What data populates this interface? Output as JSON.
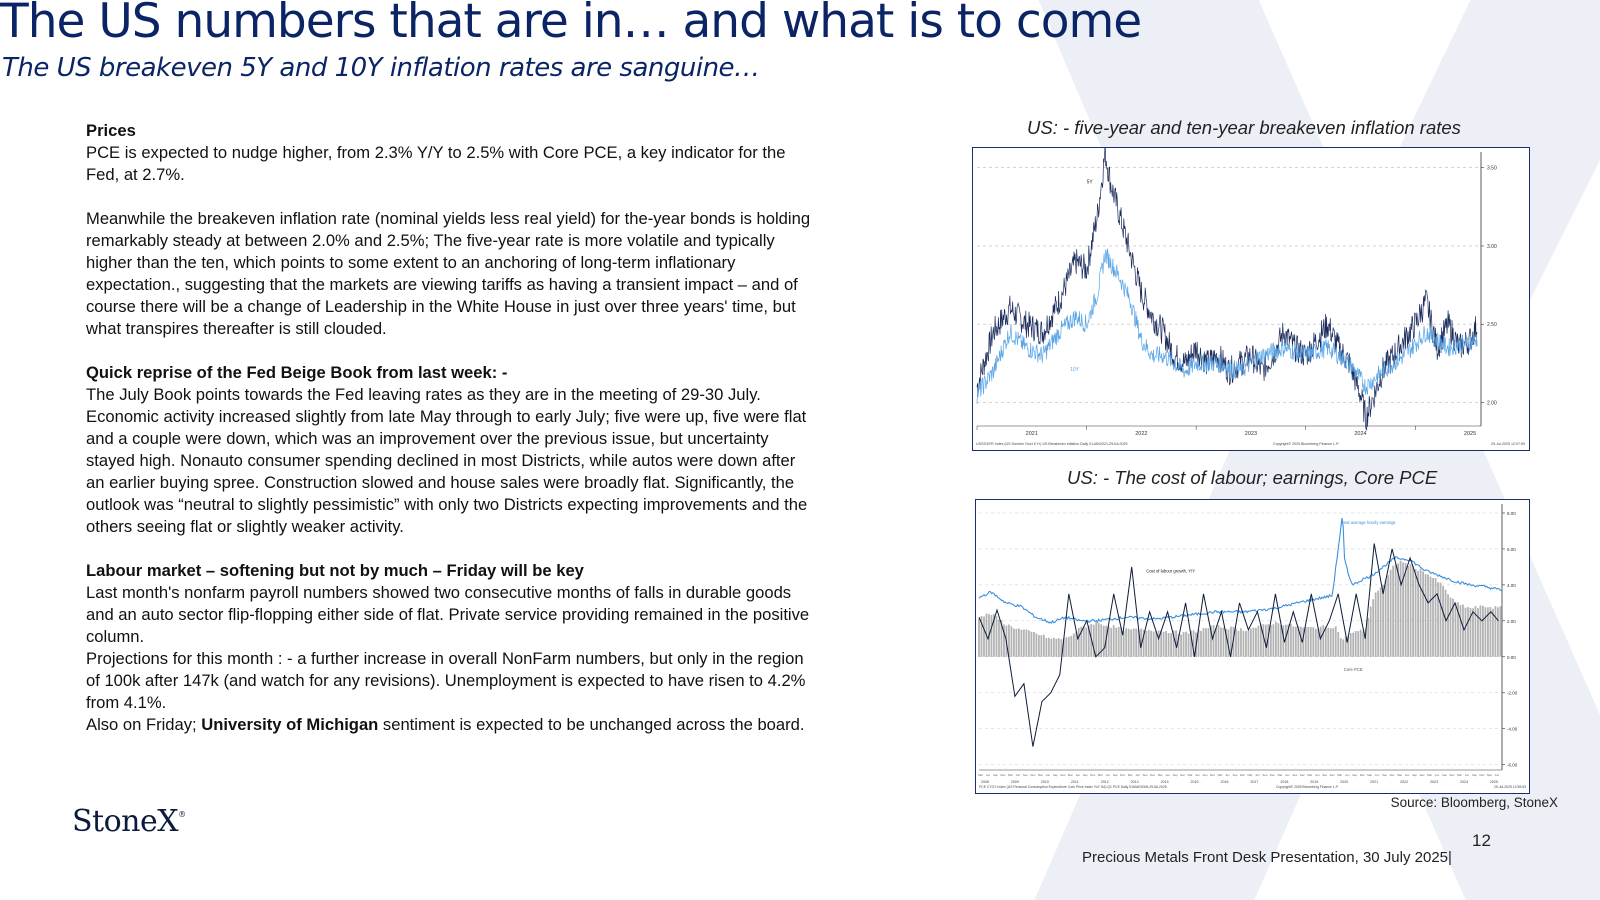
{
  "slide": {
    "title": "The US numbers that are in… and what is to come",
    "subtitle": "The US breakeven 5Y and 10Y inflation rates are sanguine…"
  },
  "body": {
    "prices_heading": "Prices",
    "prices_p1": "PCE is expected to nudge higher, from 2.3% Y/Y to 2.5% with Core PCE, a key indicator for the Fed, at 2.7%.",
    "prices_p2": "Meanwhile the breakeven inflation rate (nominal yields less real yield) for the-year bonds is holding remarkably steady at between 2.0% and 2.5%;   The five-year rate is more volatile and typically higher than the ten, which points to some extent to an anchoring of long-term inflationary expectation., suggesting that the markets are viewing tariffs as having a transient impact – and of course there will be a change of Leadership in the White House in just over three years' time, but what transpires thereafter is still clouded.",
    "beige_heading": "Quick reprise of the Fed Beige Book from last week: -",
    "beige_p1": "The July Book points towards the Fed leaving rates as they are in the meeting of 29-30 July. Economic activity increased slightly from late May through to early July; five were up, five were flat and a couple were down, which was an improvement over the previous issue, but uncertainty stayed high.  Nonauto consumer spending declined in most Districts, while autos were down after an earlier buying spree.  Construction slowed and house sales were broadly flat.  Significantly, the outlook was “neutral to slightly pessimistic” with only two Districts expecting improvements and the others seeing flat or slightly weaker activity.",
    "labour_heading": "Labour market – softening but not by much – Friday will be key",
    "labour_p1": "Last month's nonfarm payroll numbers showed two consecutive months of falls in durable goods and an auto sector flip-flopping either side of flat.  Private service providing remained in the positive column.",
    "labour_p2": "Projections for this month : - a further increase in overall NonFarm numbers, but only in the region of 100k after 147k (and watch for any revisions).  Unemployment is expected to have risen to 4.2% from 4.1%.",
    "labour_p3_prefix": "Also on Friday; ",
    "labour_p3_bold": "University of Michigan",
    "labour_p3_suffix": " sentiment is expected to be unchanged across the board."
  },
  "chart1": {
    "title": "US: -  five-year and ten-year breakeven inflation rates",
    "footer_left": "USGG5YR Index (US Generic Govt 5 Yr) US Breakeven Inflation  Daily 01JAN2021-29JUL2025",
    "footer_mid": "Copyright© 2025 Bloomberg Finance L.P.",
    "footer_right": "29-Jul-2025 12:07:59"
  },
  "chart2": {
    "title": "US: - The cost of labour; earnings,  Core PCE",
    "footer_left": "PCE CYOY Index (US Personal Consumption Expenditure Core Price Index YoY SA) Q1 PCE  Daily 01MAR2008-29JUL2025",
    "footer_mid": "Copyright© 2025 Bloomberg Finance L.P.",
    "footer_right": "29-Jul-2025 12:55:53"
  },
  "chart_data": [
    {
      "type": "line",
      "title": "US: -  five-year and ten-year breakeven inflation rates",
      "x_ticks": [
        "2021",
        "2022",
        "2023",
        "2024",
        "2025"
      ],
      "y_ticks": [
        "2.00",
        "2.50",
        "3.00",
        "3.50"
      ],
      "ylim": [
        1.85,
        3.6
      ],
      "annotations": [
        "5Y",
        "10Y"
      ],
      "series": [
        {
          "name": "5Y",
          "color": "#1a2a5c",
          "x": [
            2021.0,
            2021.15,
            2021.3,
            2021.45,
            2021.6,
            2021.75,
            2021.9,
            2022.0,
            2022.1,
            2022.17,
            2022.22,
            2022.3,
            2022.4,
            2022.5,
            2022.6,
            2022.7,
            2022.8,
            2022.9,
            2023.0,
            2023.1,
            2023.2,
            2023.3,
            2023.4,
            2023.5,
            2023.6,
            2023.7,
            2023.8,
            2023.9,
            2024.0,
            2024.1,
            2024.2,
            2024.3,
            2024.4,
            2024.5,
            2024.55,
            2024.6,
            2024.7,
            2024.8,
            2024.9,
            2025.0,
            2025.1,
            2025.2,
            2025.3,
            2025.4,
            2025.5,
            2025.57
          ],
          "values": [
            2.1,
            2.45,
            2.6,
            2.5,
            2.45,
            2.65,
            2.9,
            2.85,
            3.2,
            3.6,
            3.4,
            3.2,
            2.95,
            2.7,
            2.55,
            2.45,
            2.3,
            2.25,
            2.35,
            2.25,
            2.3,
            2.2,
            2.25,
            2.3,
            2.2,
            2.3,
            2.45,
            2.35,
            2.3,
            2.4,
            2.5,
            2.35,
            2.25,
            2.05,
            1.9,
            2.0,
            2.2,
            2.3,
            2.4,
            2.5,
            2.65,
            2.35,
            2.5,
            2.35,
            2.4,
            2.5
          ]
        },
        {
          "name": "10Y",
          "color": "#5aa5e6",
          "x": [
            2021.0,
            2021.15,
            2021.3,
            2021.45,
            2021.6,
            2021.75,
            2021.9,
            2022.0,
            2022.1,
            2022.17,
            2022.3,
            2022.4,
            2022.5,
            2022.6,
            2022.7,
            2022.8,
            2022.9,
            2023.0,
            2023.2,
            2023.4,
            2023.6,
            2023.8,
            2024.0,
            2024.2,
            2024.4,
            2024.55,
            2024.7,
            2024.9,
            2025.1,
            2025.3,
            2025.57
          ],
          "values": [
            2.05,
            2.2,
            2.45,
            2.35,
            2.3,
            2.45,
            2.55,
            2.5,
            2.7,
            2.95,
            2.8,
            2.65,
            2.4,
            2.3,
            2.3,
            2.25,
            2.2,
            2.25,
            2.25,
            2.2,
            2.3,
            2.35,
            2.3,
            2.35,
            2.25,
            2.1,
            2.2,
            2.3,
            2.45,
            2.35,
            2.4
          ]
        }
      ]
    },
    {
      "type": "line",
      "title": "US: - The cost of labour; earnings,  Core PCE",
      "x_range": [
        2008.1,
        2025.57
      ],
      "x_ticks": [
        "2008",
        "2009",
        "2010",
        "2011",
        "2012",
        "2013",
        "2014",
        "2015",
        "2016",
        "2017",
        "2018",
        "2019",
        "2020",
        "2021",
        "2022",
        "2023",
        "2024",
        "2025"
      ],
      "y_ticks": [
        "-6.00",
        "-4.00",
        "-2.00",
        "0.00",
        "2.00",
        "4.00",
        "6.00",
        "8.00"
      ],
      "ylim": [
        -6.3,
        8.5
      ],
      "annotations": [
        "Real average hourly earnings",
        "Cost of labour growth, Y/Y",
        "Core PCE"
      ],
      "series": [
        {
          "name": "Real average hourly earnings",
          "color": "#3b8fe0",
          "x": [
            2008.1,
            2008.5,
            2009.0,
            2009.5,
            2010.0,
            2010.5,
            2011.0,
            2011.5,
            2012.0,
            2013.0,
            2014.0,
            2015.0,
            2016.0,
            2017.0,
            2018.0,
            2019.0,
            2019.9,
            2020.25,
            2020.3,
            2020.45,
            2020.6,
            2020.9,
            2021.2,
            2021.6,
            2022.0,
            2022.5,
            2023.0,
            2023.5,
            2024.0,
            2024.5,
            2025.0,
            2025.57
          ],
          "values": [
            3.3,
            3.6,
            3.0,
            2.8,
            2.2,
            1.9,
            2.2,
            2.0,
            2.0,
            2.2,
            2.1,
            2.3,
            2.5,
            2.5,
            2.7,
            3.1,
            3.4,
            8.0,
            5.5,
            4.5,
            4.0,
            4.3,
            4.5,
            5.0,
            5.5,
            5.4,
            4.8,
            4.5,
            4.2,
            4.0,
            3.9,
            3.7
          ]
        },
        {
          "name": "Cost of labour growth, Y/Y",
          "color": "#0d1c3a",
          "x": [
            2008.1,
            2008.4,
            2008.7,
            2009.0,
            2009.3,
            2009.6,
            2009.9,
            2010.2,
            2010.5,
            2010.8,
            2011.1,
            2011.4,
            2011.7,
            2012.0,
            2012.3,
            2012.6,
            2012.9,
            2013.2,
            2013.5,
            2013.8,
            2014.1,
            2014.4,
            2014.7,
            2015.0,
            2015.3,
            2015.6,
            2015.9,
            2016.2,
            2016.5,
            2016.8,
            2017.1,
            2017.4,
            2017.7,
            2018.0,
            2018.3,
            2018.6,
            2018.9,
            2019.2,
            2019.5,
            2019.8,
            2020.1,
            2020.4,
            2020.7,
            2021.0,
            2021.3,
            2021.6,
            2021.9,
            2022.2,
            2022.5,
            2022.8,
            2023.1,
            2023.4,
            2023.7,
            2024.0,
            2024.3,
            2024.6,
            2024.9,
            2025.2,
            2025.45
          ],
          "values": [
            2.2,
            1.0,
            2.6,
            1.0,
            -2.2,
            -1.5,
            -5.0,
            -2.5,
            -2.0,
            -1.0,
            3.5,
            1.0,
            2.0,
            0.0,
            0.5,
            3.5,
            1.2,
            5.0,
            0.5,
            2.5,
            1.0,
            2.5,
            0.5,
            3.0,
            0.0,
            3.5,
            1.0,
            2.5,
            0.0,
            3.0,
            1.5,
            2.5,
            0.5,
            3.5,
            0.8,
            2.5,
            0.8,
            3.5,
            1.0,
            2.0,
            3.5,
            0.8,
            3.5,
            1.0,
            6.3,
            3.5,
            6.0,
            4.0,
            5.5,
            4.0,
            3.0,
            3.5,
            2.0,
            3.0,
            1.5,
            2.5,
            2.0,
            2.5,
            2.0
          ]
        },
        {
          "name": "Core PCE",
          "color": "#8a8a8a",
          "kind": "bar",
          "x": [
            2008.1,
            2008.5,
            2009.0,
            2009.5,
            2010.0,
            2010.5,
            2011.0,
            2011.5,
            2012.0,
            2013.0,
            2014.0,
            2015.0,
            2016.0,
            2017.0,
            2018.0,
            2019.0,
            2020.0,
            2020.25,
            2020.5,
            2021.0,
            2021.3,
            2021.6,
            2022.0,
            2022.2,
            2022.6,
            2023.0,
            2023.5,
            2024.0,
            2024.5,
            2025.0,
            2025.57
          ],
          "values": [
            2.2,
            2.4,
            1.8,
            1.5,
            1.3,
            1.0,
            1.0,
            1.6,
            1.9,
            1.5,
            1.5,
            1.3,
            1.7,
            1.5,
            1.9,
            1.6,
            1.7,
            0.9,
            1.3,
            1.5,
            3.5,
            4.0,
            5.2,
            5.3,
            5.0,
            4.7,
            4.1,
            3.0,
            2.7,
            2.8,
            2.7
          ]
        }
      ]
    }
  ]
}
